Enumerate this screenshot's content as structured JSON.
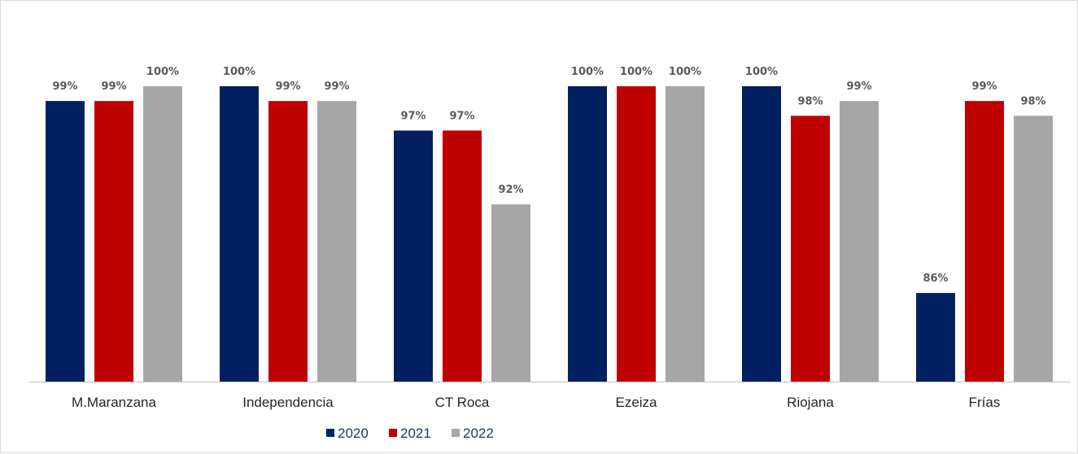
{
  "chart_data": {
    "type": "bar",
    "title": "",
    "xlabel": "",
    "ylabel": "",
    "ylim": [
      80,
      101
    ],
    "grid": false,
    "legend_position": "bottom",
    "categories": [
      "M.Maranzana",
      "Independencia",
      "CT Roca",
      "Ezeiza",
      "Riojana",
      "Frías"
    ],
    "series": [
      {
        "name": "2020",
        "color": "#002060",
        "values": [
          99,
          100,
          97,
          100,
          100,
          86
        ],
        "labels": [
          "99%",
          "100%",
          "97%",
          "100%",
          "100%",
          "86%"
        ]
      },
      {
        "name": "2021",
        "color": "#c00000",
        "values": [
          99,
          99,
          97,
          100,
          98,
          99
        ],
        "labels": [
          "99%",
          "99%",
          "97%",
          "100%",
          "98%",
          "99%"
        ]
      },
      {
        "name": "2022",
        "color": "#a6a6a6",
        "values": [
          100,
          99,
          92,
          100,
          99,
          98
        ],
        "labels": [
          "100%",
          "99%",
          "92%",
          "100%",
          "99%",
          "98%"
        ]
      }
    ],
    "plotted_values": [
      [
        99,
        99,
        100
      ],
      [
        100,
        99,
        99
      ],
      [
        97,
        97,
        92
      ],
      [
        100,
        100,
        100
      ],
      [
        100,
        98,
        99
      ],
      [
        86,
        99,
        98
      ]
    ]
  }
}
